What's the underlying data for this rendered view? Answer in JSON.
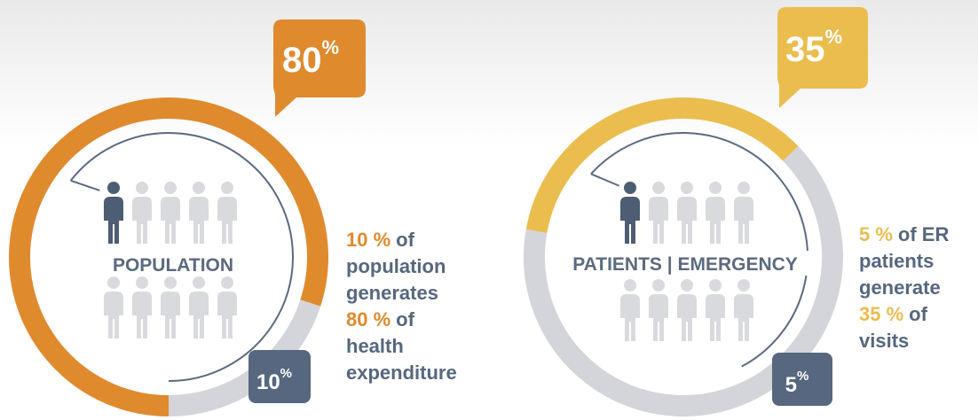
{
  "chart_data": [
    {
      "type": "donut",
      "value": 80,
      "unit": "%",
      "color": "#e08a2e",
      "rest_color": "#d3d5db",
      "label": "POPULATION",
      "small_value": 10,
      "caption": [
        {
          "hl": "10 %",
          "text": "of"
        },
        {
          "text": "population"
        },
        {
          "text": "generates"
        },
        {
          "hl": "80 %",
          "text": "of"
        },
        {
          "text": "health"
        },
        {
          "text": "expenditure"
        }
      ]
    },
    {
      "type": "donut",
      "value": 35,
      "unit": "%",
      "color": "#ebbd4f",
      "rest_color": "#d3d5db",
      "label": "PATIENTS | EMERGENCY",
      "small_value": 5,
      "caption": [
        {
          "hl": "5 %",
          "text": "of ER"
        },
        {
          "text": "patients"
        },
        {
          "text": "generate"
        },
        {
          "hl": "35 %",
          "text": "of"
        },
        {
          "text": "visits"
        }
      ]
    }
  ]
}
